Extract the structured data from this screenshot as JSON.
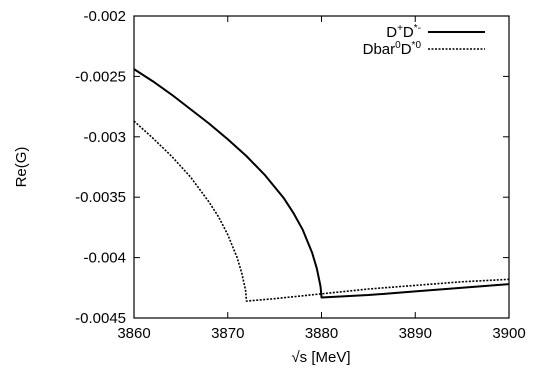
{
  "chart_data": {
    "type": "line",
    "xlabel": "√s [MeV]",
    "ylabel": "Re(G)",
    "xlim": [
      3860,
      3900
    ],
    "ylim": [
      -0.0045,
      -0.002
    ],
    "x_ticks": [
      "3860",
      "3870",
      "3880",
      "3890",
      "3900"
    ],
    "y_ticks": [
      "-0.002",
      "-0.0025",
      "-0.003",
      "-0.0035",
      "-0.004",
      "-0.0045"
    ],
    "grid": false,
    "legend_position": "top-right",
    "series": [
      {
        "legend": {
          "base1": "D",
          "sup1": "+",
          "base2": "D",
          "sup2": "*-"
        },
        "style": "solid",
        "threshold": 3880,
        "x": [
          3860,
          3862,
          3864,
          3866,
          3868,
          3870,
          3872,
          3874,
          3876,
          3877,
          3878,
          3879,
          3879.5,
          3879.9,
          3880,
          3885,
          3890,
          3895,
          3900
        ],
        "y": [
          -0.00244,
          -0.00254,
          -0.00265,
          -0.00277,
          -0.00289,
          -0.00302,
          -0.00316,
          -0.00332,
          -0.00351,
          -0.00363,
          -0.00377,
          -0.00396,
          -0.00409,
          -0.00424,
          -0.00433,
          -0.00431,
          -0.00428,
          -0.00425,
          -0.00422
        ]
      },
      {
        "legend": {
          "base1": "Dbar",
          "sup1": "0",
          "base2": "D",
          "sup2": "*0"
        },
        "style": "dashed",
        "threshold": 3872,
        "x": [
          3860,
          3862,
          3864,
          3866,
          3868,
          3869,
          3870,
          3871,
          3871.5,
          3871.9,
          3872,
          3875,
          3880,
          3885,
          3890,
          3895,
          3900
        ],
        "y": [
          -0.00287,
          -0.00301,
          -0.00316,
          -0.00333,
          -0.00354,
          -0.00366,
          -0.00381,
          -0.004,
          -0.00413,
          -0.00427,
          -0.00436,
          -0.00434,
          -0.0043,
          -0.00426,
          -0.00423,
          -0.0042,
          -0.00418
        ]
      }
    ]
  }
}
